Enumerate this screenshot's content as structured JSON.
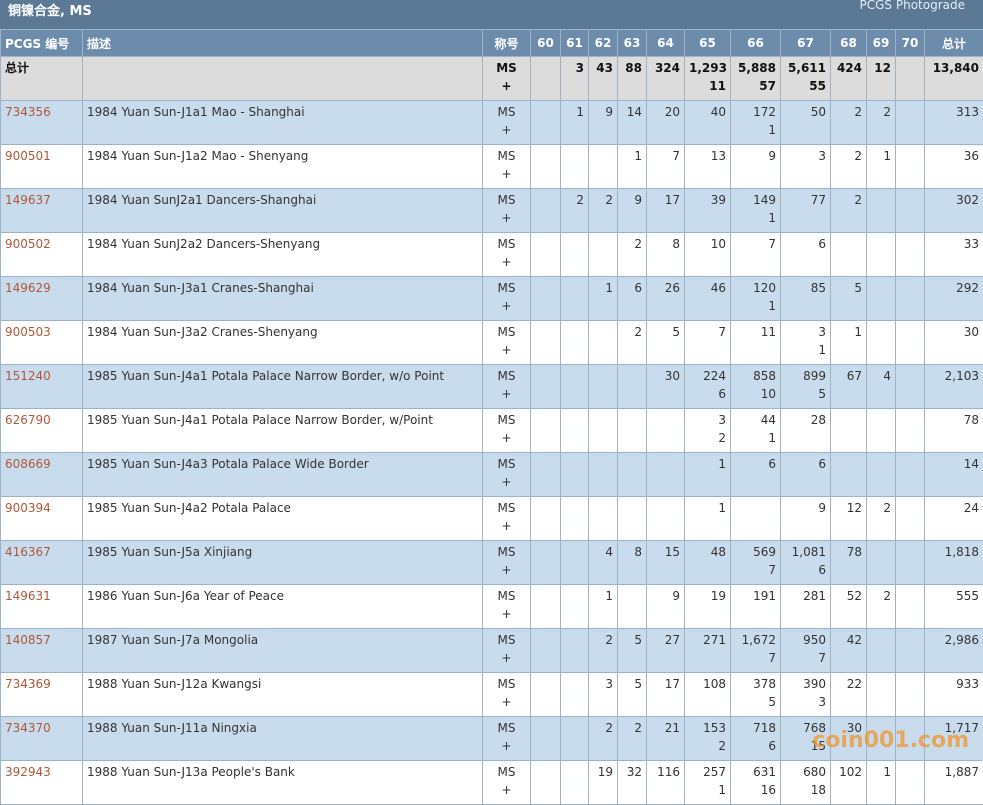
{
  "header": {
    "title": "铜镍合金, MS",
    "link": "PCGS Photograde"
  },
  "table": {
    "columns": [
      "PCGS 编号",
      "描述",
      "称号",
      "60",
      "61",
      "62",
      "63",
      "64",
      "65",
      "66",
      "67",
      "68",
      "69",
      "70",
      "总计"
    ],
    "total_row": {
      "label": "总计",
      "designation": [
        "MS",
        "+"
      ],
      "grades": [
        [],
        [
          "3"
        ],
        [
          "43"
        ],
        [
          "88"
        ],
        [
          "324"
        ],
        [
          "1,293",
          "11"
        ],
        [
          "5,888",
          "57"
        ],
        [
          "5,611",
          "55"
        ],
        [
          "424"
        ],
        [
          "12"
        ],
        []
      ],
      "total": "13,840"
    },
    "rows": [
      {
        "number": "734356",
        "description": "1984 Yuan Sun-J1a1 Mao - Shanghai",
        "designation": [
          "MS",
          "+"
        ],
        "grades": [
          [],
          [
            "1"
          ],
          [
            "9"
          ],
          [
            "14"
          ],
          [
            "20"
          ],
          [
            "40"
          ],
          [
            "172",
            "1"
          ],
          [
            "50"
          ],
          [
            "2"
          ],
          [
            "2"
          ],
          []
        ],
        "total": "313"
      },
      {
        "number": "900501",
        "description": "1984 Yuan Sun-J1a2 Mao - Shenyang",
        "designation": [
          "MS",
          "+"
        ],
        "grades": [
          [],
          [],
          [],
          [
            "1"
          ],
          [
            "7"
          ],
          [
            "13"
          ],
          [
            "9"
          ],
          [
            "3"
          ],
          [
            "2"
          ],
          [
            "1"
          ],
          []
        ],
        "total": "36"
      },
      {
        "number": "149637",
        "description": "1984 Yuan SunJ2a1 Dancers-Shanghai",
        "designation": [
          "MS",
          "+"
        ],
        "grades": [
          [],
          [
            "2"
          ],
          [
            "2"
          ],
          [
            "9"
          ],
          [
            "17"
          ],
          [
            "39"
          ],
          [
            "149",
            "1"
          ],
          [
            "77"
          ],
          [
            "2"
          ],
          [],
          []
        ],
        "total": "302"
      },
      {
        "number": "900502",
        "description": "1984 Yuan SunJ2a2 Dancers-Shenyang",
        "designation": [
          "MS",
          "+"
        ],
        "grades": [
          [],
          [],
          [],
          [
            "2"
          ],
          [
            "8"
          ],
          [
            "10"
          ],
          [
            "7"
          ],
          [
            "6"
          ],
          [],
          [],
          []
        ],
        "total": "33"
      },
      {
        "number": "149629",
        "description": "1984 Yuan Sun-J3a1 Cranes-Shanghai",
        "designation": [
          "MS",
          "+"
        ],
        "grades": [
          [],
          [],
          [
            "1"
          ],
          [
            "6"
          ],
          [
            "26"
          ],
          [
            "46"
          ],
          [
            "120",
            "1"
          ],
          [
            "85"
          ],
          [
            "5"
          ],
          [],
          []
        ],
        "total": "292"
      },
      {
        "number": "900503",
        "description": "1984 Yuan Sun-J3a2 Cranes-Shenyang",
        "designation": [
          "MS",
          "+"
        ],
        "grades": [
          [],
          [],
          [],
          [
            "2"
          ],
          [
            "5"
          ],
          [
            "7"
          ],
          [
            "11"
          ],
          [
            "3",
            "1"
          ],
          [
            "1"
          ],
          [],
          []
        ],
        "total": "30"
      },
      {
        "number": "151240",
        "description": "1985 Yuan Sun-J4a1 Potala Palace Narrow Border, w/o Point",
        "designation": [
          "MS",
          "+"
        ],
        "grades": [
          [],
          [],
          [],
          [],
          [
            "30"
          ],
          [
            "224",
            "6"
          ],
          [
            "858",
            "10"
          ],
          [
            "899",
            "5"
          ],
          [
            "67"
          ],
          [
            "4"
          ],
          []
        ],
        "total": "2,103"
      },
      {
        "number": "626790",
        "description": "1985 Yuan Sun-J4a1 Potala Palace Narrow Border, w/Point",
        "designation": [
          "MS",
          "+"
        ],
        "grades": [
          [],
          [],
          [],
          [],
          [],
          [
            "3",
            "2"
          ],
          [
            "44",
            "1"
          ],
          [
            "28"
          ],
          [],
          [],
          []
        ],
        "total": "78"
      },
      {
        "number": "608669",
        "description": "1985 Yuan Sun-J4a3 Potala Palace Wide Border",
        "designation": [
          "MS",
          "+"
        ],
        "grades": [
          [],
          [],
          [],
          [],
          [],
          [
            "1"
          ],
          [
            "6"
          ],
          [
            "6"
          ],
          [],
          [],
          []
        ],
        "total": "14"
      },
      {
        "number": "900394",
        "description": "1985 Yuan Sun-J4a2 Potala Palace",
        "designation": [
          "MS",
          "+"
        ],
        "grades": [
          [],
          [],
          [],
          [],
          [],
          [
            "1"
          ],
          [],
          [
            "9"
          ],
          [
            "12"
          ],
          [
            "2"
          ],
          []
        ],
        "total": "24"
      },
      {
        "number": "416367",
        "description": "1985 Yuan Sun-J5a Xinjiang",
        "designation": [
          "MS",
          "+"
        ],
        "grades": [
          [],
          [],
          [
            "4"
          ],
          [
            "8"
          ],
          [
            "15"
          ],
          [
            "48"
          ],
          [
            "569",
            "7"
          ],
          [
            "1,081",
            "6"
          ],
          [
            "78"
          ],
          [],
          []
        ],
        "total": "1,818"
      },
      {
        "number": "149631",
        "description": "1986 Yuan Sun-J6a Year of Peace",
        "designation": [
          "MS",
          "+"
        ],
        "grades": [
          [],
          [],
          [
            "1"
          ],
          [],
          [
            "9"
          ],
          [
            "19"
          ],
          [
            "191"
          ],
          [
            "281"
          ],
          [
            "52"
          ],
          [
            "2"
          ],
          []
        ],
        "total": "555"
      },
      {
        "number": "140857",
        "description": "1987 Yuan Sun-J7a Mongolia",
        "designation": [
          "MS",
          "+"
        ],
        "grades": [
          [],
          [],
          [
            "2"
          ],
          [
            "5"
          ],
          [
            "27"
          ],
          [
            "271"
          ],
          [
            "1,672",
            "7"
          ],
          [
            "950",
            "7"
          ],
          [
            "42"
          ],
          [],
          []
        ],
        "total": "2,986"
      },
      {
        "number": "734369",
        "description": "1988 Yuan Sun-J12a Kwangsi",
        "designation": [
          "MS",
          "+"
        ],
        "grades": [
          [],
          [],
          [
            "3"
          ],
          [
            "5"
          ],
          [
            "17"
          ],
          [
            "108"
          ],
          [
            "378",
            "5"
          ],
          [
            "390",
            "3"
          ],
          [
            "22"
          ],
          [],
          []
        ],
        "total": "933"
      },
      {
        "number": "734370",
        "description": "1988 Yuan Sun-J11a Ningxia",
        "designation": [
          "MS",
          "+"
        ],
        "grades": [
          [],
          [],
          [
            "2"
          ],
          [
            "2"
          ],
          [
            "21"
          ],
          [
            "153",
            "2"
          ],
          [
            "718",
            "6"
          ],
          [
            "768",
            "15"
          ],
          [
            "30"
          ],
          [],
          []
        ],
        "total": "1,717"
      },
      {
        "number": "392943",
        "description": "1988 Yuan Sun-J13a People's Bank",
        "designation": [
          "MS",
          "+"
        ],
        "grades": [
          [],
          [],
          [
            "19"
          ],
          [
            "32"
          ],
          [
            "116"
          ],
          [
            "257",
            "1"
          ],
          [
            "631",
            "16"
          ],
          [
            "680",
            "18"
          ],
          [
            "102"
          ],
          [
            "1"
          ],
          []
        ],
        "total": "1,887"
      }
    ]
  },
  "watermark": "coin001.com"
}
